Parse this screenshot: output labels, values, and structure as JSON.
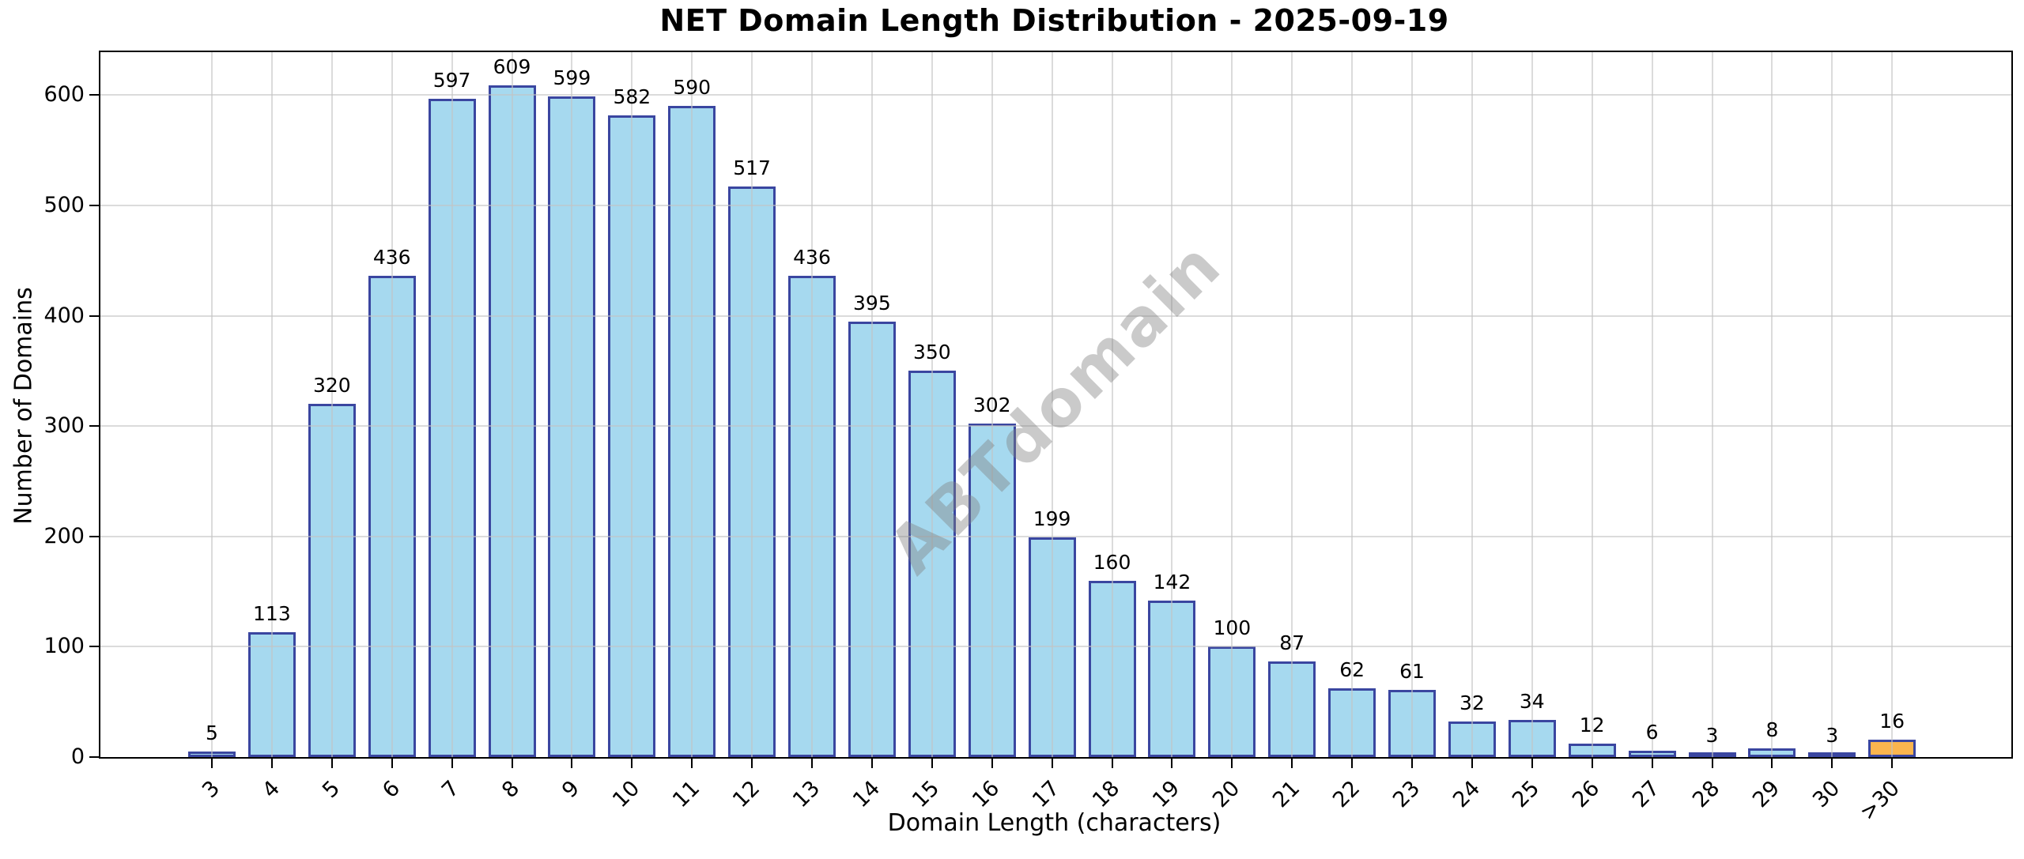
{
  "chart_data": {
    "type": "bar",
    "title": "NET Domain Length Distribution - 2025-09-19",
    "xlabel": "Domain Length (characters)",
    "ylabel": "Number of Domains",
    "categories": [
      "3",
      "4",
      "5",
      "6",
      "7",
      "8",
      "9",
      "10",
      "11",
      "12",
      "13",
      "14",
      "15",
      "16",
      "17",
      "18",
      "19",
      "20",
      "21",
      "22",
      "23",
      "24",
      "25",
      "26",
      "27",
      "28",
      "29",
      "30",
      ">30"
    ],
    "values": [
      5,
      113,
      320,
      436,
      597,
      609,
      599,
      582,
      590,
      517,
      436,
      395,
      350,
      302,
      199,
      160,
      142,
      100,
      87,
      62,
      61,
      32,
      34,
      12,
      6,
      3,
      8,
      3,
      16
    ],
    "ylim": [
      0,
      639
    ],
    "yticks": [
      0,
      100,
      200,
      300,
      400,
      500,
      600
    ],
    "grid": true,
    "legend": "none",
    "bar_color": "#A6D9EF",
    "bar_edge_color": "#3A46A0",
    "highlight_last_bar_color": "#FBB54E",
    "grid_color": "rgba(195,195,195,0.6)",
    "watermark_text": "ABTdomain",
    "watermark_color": "rgba(128,128,128,0.42)"
  }
}
